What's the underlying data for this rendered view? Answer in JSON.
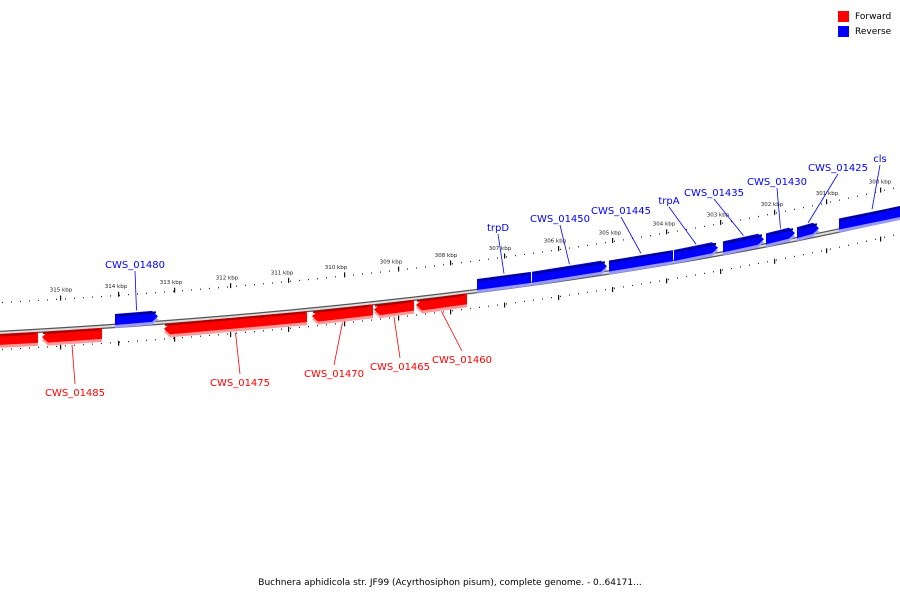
{
  "colors": {
    "forward": "#ff0000",
    "reverse": "#0000ff",
    "backbone": "#888888"
  },
  "legend": [
    {
      "label": "Forward",
      "color": "#ff0000"
    },
    {
      "label": "Reverse",
      "color": "#0000ff"
    }
  ],
  "caption": "Buchnera aphidicola str. JF99 (Acyrthosiphon pisum), complete genome. - 0..64171...",
  "scale_labels": [
    "315 kbp",
    "314 kbp",
    "313 kbp",
    "312 kbp",
    "311 kbp",
    "310 kbp",
    "309 kbp",
    "308 kbp",
    "307 kbp",
    "306 kbp",
    "305 kbp",
    "304 kbp",
    "303 kbp",
    "302 kbp",
    "301 kbp",
    "300 kbp"
  ],
  "genes": [
    {
      "name": "",
      "strand": "forward"
    },
    {
      "name": "CWS_01485",
      "strand": "forward"
    },
    {
      "name": "CWS_01480",
      "strand": "reverse"
    },
    {
      "name": "CWS_01475",
      "strand": "forward"
    },
    {
      "name": "CWS_01470",
      "strand": "forward"
    },
    {
      "name": "CWS_01465",
      "strand": "forward"
    },
    {
      "name": "CWS_01460",
      "strand": "forward"
    },
    {
      "name": "trpD",
      "strand": "reverse"
    },
    {
      "name": "CWS_01450",
      "strand": "reverse"
    },
    {
      "name": "CWS_01445",
      "strand": "reverse"
    },
    {
      "name": "trpA",
      "strand": "reverse"
    },
    {
      "name": "CWS_01435",
      "strand": "reverse"
    },
    {
      "name": "CWS_01430",
      "strand": "reverse"
    },
    {
      "name": "CWS_01425",
      "strand": "reverse"
    },
    {
      "name": "cls",
      "strand": "reverse"
    }
  ]
}
